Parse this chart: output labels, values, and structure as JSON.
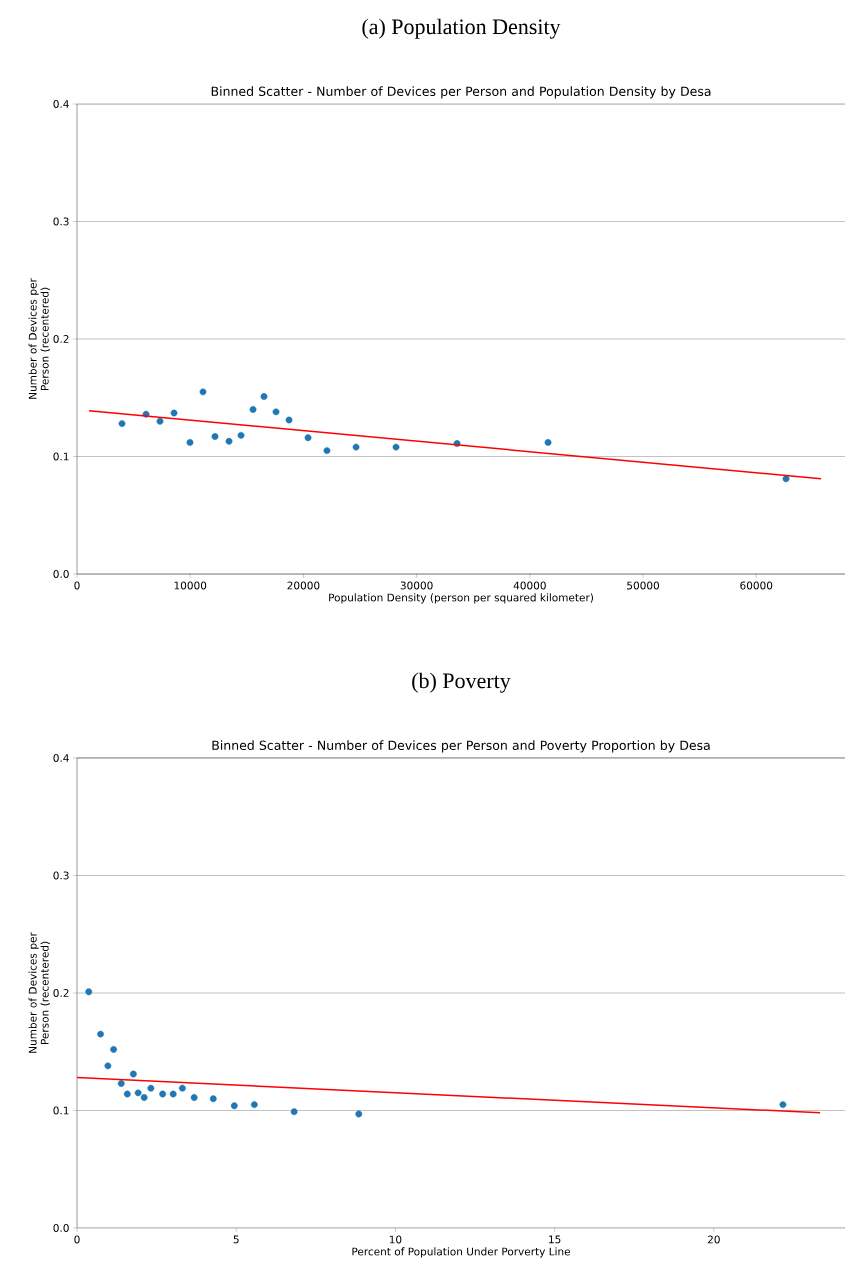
{
  "chart_data": [
    {
      "type": "scatter",
      "title": "(a) Population Density",
      "subtitle": "Binned Scatter - Number of Devices per Person and Population Density by Desa",
      "xlabel": "Population Density (person per squared kilometer)",
      "ylabel": "Number of Devices per Person (recentered)",
      "xlim": [
        0,
        67840
      ],
      "ylim": [
        0,
        0.4
      ],
      "xticks": [
        0,
        10000,
        20000,
        30000,
        40000,
        50000,
        60000
      ],
      "yticks": [
        {
          "value": 0,
          "label": "0.0"
        },
        0.1,
        0.2,
        0.3,
        0.4
      ],
      "grid": "y",
      "marker": "circle",
      "series": [
        {
          "color": "#1f77b4",
          "x": [
            3975,
            6100,
            7330,
            8570,
            9980,
            11130,
            12190,
            13430,
            14490,
            15550,
            16520,
            17580,
            18730,
            20410,
            22080,
            24650,
            28180,
            33570,
            41610,
            62630
          ],
          "values": [
            0.128,
            0.136,
            0.13,
            0.137,
            0.112,
            0.155,
            0.117,
            0.113,
            0.118,
            0.14,
            0.151,
            0.138,
            0.131,
            0.116,
            0.105,
            0.108,
            0.108,
            0.111,
            0.112,
            0.081
          ]
        },
        {
          "type": "line",
          "marker": "none",
          "color": "#ff0000",
          "x": [
            1060,
            65720
          ],
          "values": [
            0.139,
            0.081
          ]
        }
      ]
    },
    {
      "type": "scatter",
      "title": "(b) Poverty",
      "subtitle": "Binned Scatter - Number of Devices per Person and Poverty Proportion by Desa",
      "xlabel": "Percent of Population Under Porverty Line",
      "ylabel": "Number of Devices per Person (recentered)",
      "xlim": [
        0,
        24.12
      ],
      "ylim": [
        0,
        0.4
      ],
      "xticks": [
        0,
        5,
        10,
        15,
        20
      ],
      "yticks": [
        {
          "value": 0,
          "label": "0.0"
        },
        0.1,
        0.2,
        0.3,
        0.4
      ],
      "grid": "y",
      "marker": "circle",
      "series": [
        {
          "color": "#1f77b4",
          "x": [
            0.37,
            0.74,
            0.97,
            1.15,
            1.39,
            1.58,
            1.77,
            1.92,
            2.11,
            2.32,
            2.69,
            3.02,
            3.31,
            3.68,
            4.28,
            4.94,
            5.57,
            6.82,
            8.85,
            22.17
          ],
          "values": [
            0.201,
            0.165,
            0.138,
            0.152,
            0.123,
            0.114,
            0.131,
            0.115,
            0.111,
            0.119,
            0.114,
            0.114,
            0.119,
            0.111,
            0.11,
            0.104,
            0.105,
            0.099,
            0.097,
            0.105
          ]
        },
        {
          "type": "line",
          "marker": "none",
          "color": "#ff0000",
          "x": [
            0,
            23.34
          ],
          "values": [
            0.128,
            0.098
          ]
        }
      ]
    }
  ]
}
